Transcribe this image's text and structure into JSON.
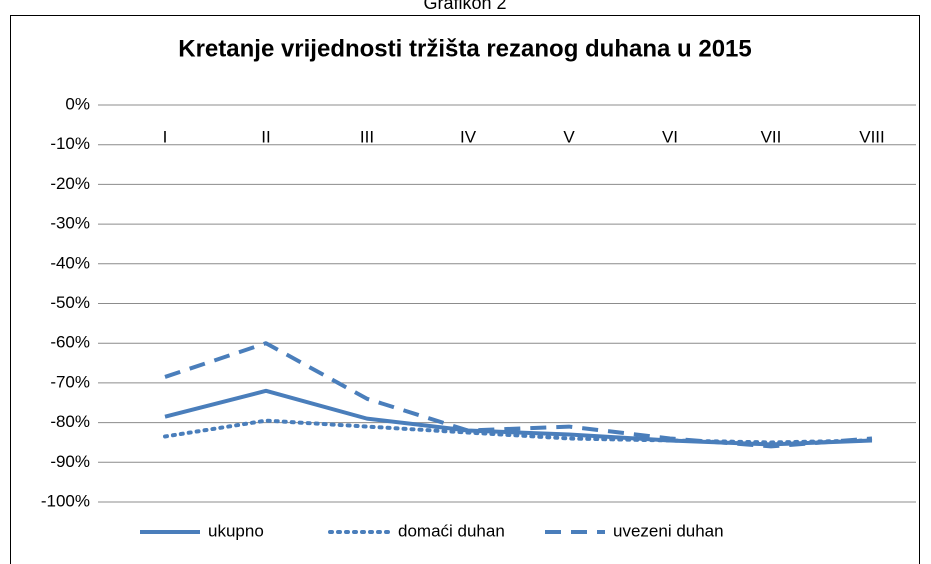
{
  "caption": "Grafikon 2",
  "chart_data": {
    "type": "line",
    "title": "Kretanje vrijednosti tržišta rezanog duhana u 2015",
    "categories": [
      "I",
      "II",
      "III",
      "IV",
      "V",
      "VI",
      "VII",
      "VIII"
    ],
    "series": [
      {
        "name": "ukupno",
        "color": "#4a7ebb",
        "style": "solid",
        "values": [
          -78.5,
          -72,
          -79,
          -82,
          -83,
          -84.5,
          -85.5,
          -84.5
        ]
      },
      {
        "name": "domaći duhan",
        "color": "#4a7ebb",
        "style": "dotted",
        "values": [
          -83.5,
          -79.5,
          -81,
          -82.5,
          -84,
          -84.5,
          -85,
          -84.5
        ]
      },
      {
        "name": "uvezeni duhan",
        "color": "#4a7ebb",
        "style": "dashed",
        "values": [
          -68.5,
          -60,
          -74,
          -82,
          -81,
          -84,
          -86,
          -84
        ]
      }
    ],
    "ylim": [
      -100,
      0
    ],
    "yticks": [
      {
        "value": 0,
        "label": "0%"
      },
      {
        "value": -10,
        "label": "-10%"
      },
      {
        "value": -20,
        "label": "-20%"
      },
      {
        "value": -30,
        "label": "-30%"
      },
      {
        "value": -40,
        "label": "-40%"
      },
      {
        "value": -50,
        "label": "-50%"
      },
      {
        "value": -60,
        "label": "-60%"
      },
      {
        "value": -70,
        "label": "-70%"
      },
      {
        "value": -80,
        "label": "-80%"
      },
      {
        "value": -90,
        "label": "-90%"
      },
      {
        "value": -100,
        "label": "-100%"
      }
    ],
    "grid": true,
    "legend": "bottom"
  }
}
